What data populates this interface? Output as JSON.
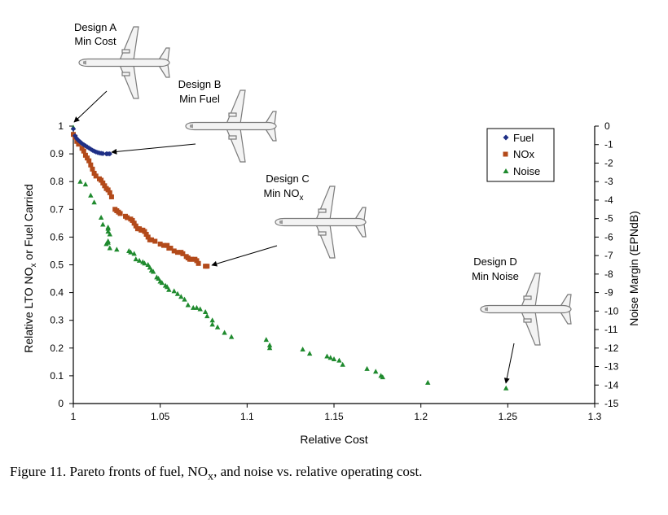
{
  "chart_data": {
    "type": "scatter",
    "xlabel": "Relative Cost",
    "ylabel_left_parts": [
      "Relative LTO NO",
      "x",
      " or Fuel Carried"
    ],
    "ylabel_right": "Noise Margin (EPNdB)",
    "xlim": [
      1,
      1.3
    ],
    "ylim_left": [
      0,
      1
    ],
    "ylim_right": [
      -15,
      0
    ],
    "x_ticks": [
      "1",
      "1.05",
      "1.1",
      "1.15",
      "1.2",
      "1.25",
      "1.3"
    ],
    "y_left_ticks": [
      "0",
      "0.1",
      "0.2",
      "0.3",
      "0.4",
      "0.5",
      "0.6",
      "0.7",
      "0.8",
      "0.9",
      "1"
    ],
    "y_right_ticks": [
      "0",
      "-1",
      "-2",
      "-3",
      "-4",
      "-5",
      "-6",
      "-7",
      "-8",
      "-9",
      "-10",
      "-11",
      "-12",
      "-13",
      "-14",
      "-15"
    ],
    "legend": [
      "Fuel",
      "NOx",
      "Noise"
    ],
    "legend_position": "upper-right",
    "grid": false,
    "series": [
      {
        "name": "Fuel",
        "marker": "diamond",
        "color": "#1f2f86",
        "axis": "left",
        "points": [
          [
            1.0,
            0.99
          ],
          [
            1.001,
            0.965
          ],
          [
            1.002,
            0.955
          ],
          [
            1.003,
            0.948
          ],
          [
            1.004,
            0.943
          ],
          [
            1.005,
            0.937
          ],
          [
            1.006,
            0.933
          ],
          [
            1.007,
            0.929
          ],
          [
            1.008,
            0.925
          ],
          [
            1.009,
            0.921
          ],
          [
            1.01,
            0.917
          ],
          [
            1.011,
            0.913
          ],
          [
            1.012,
            0.91
          ],
          [
            1.013,
            0.907
          ],
          [
            1.014,
            0.905
          ],
          [
            1.015,
            0.903
          ],
          [
            1.016,
            0.902
          ],
          [
            1.017,
            0.901
          ],
          [
            1.019,
            0.9
          ],
          [
            1.02,
            0.9
          ],
          [
            1.021,
            0.9
          ]
        ]
      },
      {
        "name": "NOx",
        "marker": "square",
        "color": "#b34a1a",
        "axis": "left",
        "points": [
          [
            1.0,
            0.97
          ],
          [
            1.001,
            0.96
          ],
          [
            1.002,
            0.945
          ],
          [
            1.003,
            0.935
          ],
          [
            1.005,
            0.92
          ],
          [
            1.006,
            0.91
          ],
          [
            1.007,
            0.895
          ],
          [
            1.008,
            0.885
          ],
          [
            1.009,
            0.875
          ],
          [
            1.01,
            0.86
          ],
          [
            1.011,
            0.845
          ],
          [
            1.012,
            0.83
          ],
          [
            1.013,
            0.82
          ],
          [
            1.015,
            0.81
          ],
          [
            1.016,
            0.805
          ],
          [
            1.017,
            0.795
          ],
          [
            1.018,
            0.785
          ],
          [
            1.019,
            0.775
          ],
          [
            1.02,
            0.77
          ],
          [
            1.021,
            0.76
          ],
          [
            1.022,
            0.745
          ],
          [
            1.024,
            0.7
          ],
          [
            1.025,
            0.695
          ],
          [
            1.026,
            0.69
          ],
          [
            1.027,
            0.685
          ],
          [
            1.03,
            0.675
          ],
          [
            1.031,
            0.67
          ],
          [
            1.033,
            0.665
          ],
          [
            1.034,
            0.66
          ],
          [
            1.035,
            0.65
          ],
          [
            1.036,
            0.64
          ],
          [
            1.037,
            0.63
          ],
          [
            1.038,
            0.63
          ],
          [
            1.039,
            0.625
          ],
          [
            1.04,
            0.625
          ],
          [
            1.041,
            0.62
          ],
          [
            1.042,
            0.61
          ],
          [
            1.043,
            0.6
          ],
          [
            1.044,
            0.59
          ],
          [
            1.045,
            0.59
          ],
          [
            1.047,
            0.585
          ],
          [
            1.05,
            0.575
          ],
          [
            1.052,
            0.57
          ],
          [
            1.054,
            0.57
          ],
          [
            1.055,
            0.56
          ],
          [
            1.056,
            0.56
          ],
          [
            1.058,
            0.55
          ],
          [
            1.06,
            0.545
          ],
          [
            1.062,
            0.545
          ],
          [
            1.063,
            0.54
          ],
          [
            1.065,
            0.53
          ],
          [
            1.066,
            0.525
          ],
          [
            1.067,
            0.52
          ],
          [
            1.068,
            0.52
          ],
          [
            1.07,
            0.52
          ],
          [
            1.071,
            0.515
          ],
          [
            1.072,
            0.505
          ],
          [
            1.076,
            0.495
          ],
          [
            1.077,
            0.495
          ]
        ]
      },
      {
        "name": "Noise",
        "marker": "triangle",
        "color": "#1f8a2e",
        "axis": "left",
        "points": [
          [
            1.0,
            0.995
          ],
          [
            1.004,
            0.8
          ],
          [
            1.007,
            0.79
          ],
          [
            1.01,
            0.75
          ],
          [
            1.012,
            0.725
          ],
          [
            1.016,
            0.67
          ],
          [
            1.017,
            0.645
          ],
          [
            1.02,
            0.635
          ],
          [
            1.02,
            0.63
          ],
          [
            1.02,
            0.62
          ],
          [
            1.021,
            0.61
          ],
          [
            1.02,
            0.585
          ],
          [
            1.02,
            0.58
          ],
          [
            1.019,
            0.575
          ],
          [
            1.021,
            0.56
          ],
          [
            1.025,
            0.555
          ],
          [
            1.032,
            0.55
          ],
          [
            1.033,
            0.545
          ],
          [
            1.035,
            0.54
          ],
          [
            1.036,
            0.52
          ],
          [
            1.038,
            0.515
          ],
          [
            1.04,
            0.51
          ],
          [
            1.041,
            0.505
          ],
          [
            1.043,
            0.5
          ],
          [
            1.044,
            0.49
          ],
          [
            1.045,
            0.48
          ],
          [
            1.046,
            0.475
          ],
          [
            1.048,
            0.455
          ],
          [
            1.049,
            0.45
          ],
          [
            1.05,
            0.44
          ],
          [
            1.051,
            0.435
          ],
          [
            1.053,
            0.425
          ],
          [
            1.054,
            0.42
          ],
          [
            1.055,
            0.41
          ],
          [
            1.058,
            0.405
          ],
          [
            1.06,
            0.395
          ],
          [
            1.062,
            0.385
          ],
          [
            1.064,
            0.375
          ],
          [
            1.066,
            0.355
          ],
          [
            1.069,
            0.345
          ],
          [
            1.071,
            0.345
          ],
          [
            1.073,
            0.34
          ],
          [
            1.076,
            0.33
          ],
          [
            1.077,
            0.315
          ],
          [
            1.08,
            0.3
          ],
          [
            1.08,
            0.285
          ],
          [
            1.083,
            0.275
          ],
          [
            1.087,
            0.255
          ],
          [
            1.091,
            0.24
          ],
          [
            1.111,
            0.23
          ],
          [
            1.113,
            0.21
          ],
          [
            1.113,
            0.2
          ],
          [
            1.132,
            0.195
          ],
          [
            1.136,
            0.18
          ],
          [
            1.146,
            0.17
          ],
          [
            1.148,
            0.165
          ],
          [
            1.15,
            0.16
          ],
          [
            1.153,
            0.155
          ],
          [
            1.155,
            0.14
          ],
          [
            1.169,
            0.125
          ],
          [
            1.174,
            0.115
          ],
          [
            1.177,
            0.1
          ],
          [
            1.178,
            0.095
          ],
          [
            1.204,
            0.075
          ],
          [
            1.249,
            0.055
          ]
        ]
      }
    ],
    "annotations": [
      {
        "label_lines": [
          "Design A",
          "Min Cost"
        ]
      },
      {
        "label_lines": [
          "Design B",
          "Min Fuel"
        ]
      },
      {
        "label_lines": [
          "Design C",
          "Min NO"
        ],
        "subscript": "x"
      },
      {
        "label_lines": [
          "Design D",
          "Min Noise"
        ]
      }
    ]
  },
  "caption": {
    "prefix": "Figure 11.  Pareto fronts of fuel, NO",
    "sub": "x",
    "suffix": ", and noise vs. relative operating cost."
  }
}
